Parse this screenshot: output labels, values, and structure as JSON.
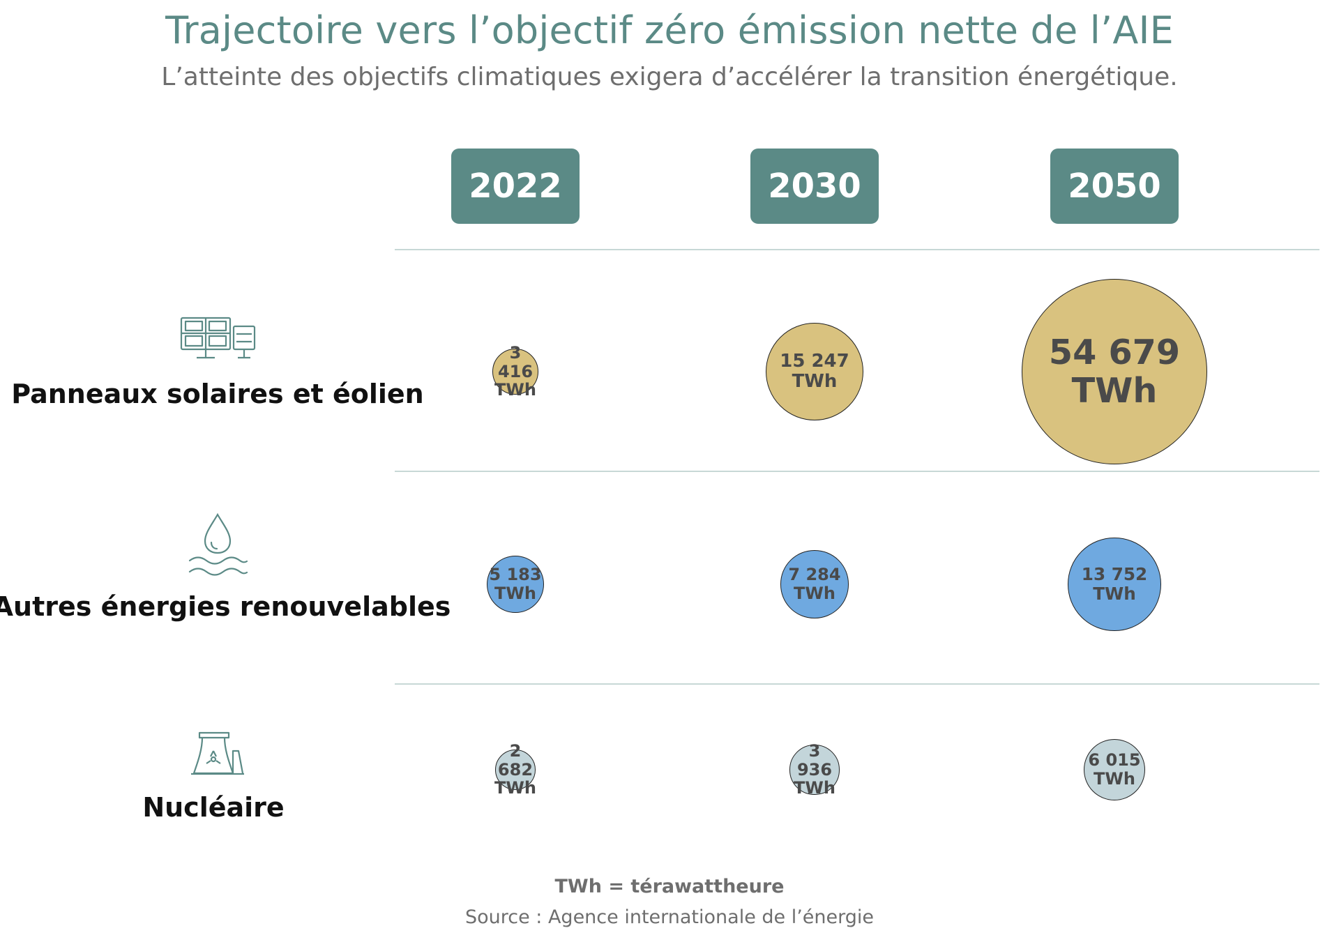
{
  "header": {
    "title": "Trajectoire vers l’objectif zéro émission nette de l’AIE",
    "subtitle": "L’atteinte des objectifs climatiques exigera d’accélérer la transition énergétique."
  },
  "colors": {
    "accent": "#5b8a86",
    "solar_wind": "#d9c27f",
    "other_renewables": "#6fa9e0",
    "nuclear": "#c3d5da"
  },
  "chart_data": {
    "type": "bubble-table",
    "unit": "TWh",
    "categories": [
      "2022",
      "2030",
      "2050"
    ],
    "series": [
      {
        "name": "Panneaux solaires et éolien",
        "icon": "solar-panel-icon",
        "color": "#d9c27f",
        "values": [
          3416,
          15247,
          54679
        ],
        "labels": [
          "3 416",
          "15 247",
          "54 679"
        ]
      },
      {
        "name": "Autres énergies renouvelables",
        "icon": "water-drop-icon",
        "color": "#6fa9e0",
        "values": [
          5183,
          7284,
          13752
        ],
        "labels": [
          "5 183",
          "7 284",
          "13 752"
        ]
      },
      {
        "name": "Nucléaire",
        "icon": "nuclear-plant-icon",
        "color": "#c3d5da",
        "values": [
          2682,
          3936,
          6015
        ],
        "labels": [
          "2 682",
          "3 936",
          "6 015"
        ]
      }
    ]
  },
  "footer": {
    "unit_note": "TWh = térawattheure",
    "source": "Source : Agence internationale de l’énergie"
  }
}
